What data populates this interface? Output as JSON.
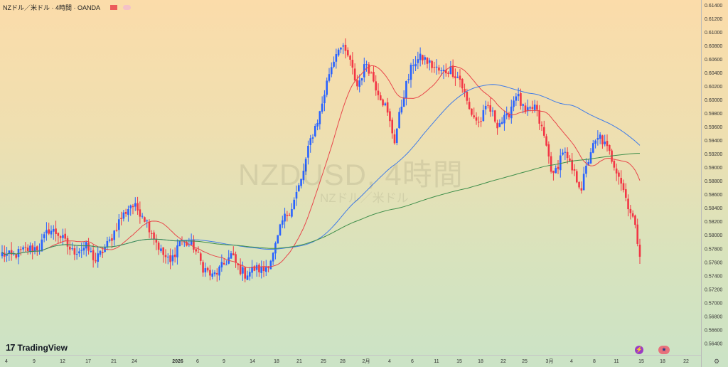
{
  "header": {
    "title": "NZドル／米ドル · 4時間 · OANDA"
  },
  "watermark": {
    "symbol": "NZDUSD, 4時間",
    "description": "NZドル／米ドル"
  },
  "branding": {
    "logo_mark": "17",
    "logo_text": "TradingView"
  },
  "icons": [
    "flash-icon",
    "us-flag-icon",
    "settings-icon"
  ],
  "colors": {
    "up": "#2962ff",
    "down": "#f23645",
    "ma_short": "#e8474b",
    "ma_mid": "#3f7be8",
    "ma_long": "#3e8e4a"
  },
  "chart_data": {
    "type": "candlestick",
    "title": "NZドル／米ドル · 4時間 · OANDA",
    "xlabel": "",
    "ylabel": "",
    "ylim": [
      0.5632,
      0.6142
    ],
    "y_ticks": [
      "0.61400",
      "0.61200",
      "0.61000",
      "0.60800",
      "0.60600",
      "0.60400",
      "0.60200",
      "0.60000",
      "0.59800",
      "0.59600",
      "0.59400",
      "0.59200",
      "0.59000",
      "0.58800",
      "0.58600",
      "0.58400",
      "0.58200",
      "0.58000",
      "0.57800",
      "0.57600",
      "0.57400",
      "0.57200",
      "0.57000",
      "0.56800",
      "0.56600",
      "0.56400"
    ],
    "x_ticks": [
      "4",
      "9",
      "12",
      "17",
      "21",
      "24",
      "2026",
      "6",
      "9",
      "14",
      "18",
      "21",
      "25",
      "28",
      "2月",
      "4",
      "6",
      "11",
      "15",
      "18",
      "22",
      "25",
      "3月",
      "4",
      "8",
      "11",
      "15",
      "18",
      "22"
    ],
    "anchors": [
      {
        "i": 0,
        "p": 0.5772
      },
      {
        "i": 4,
        "p": 0.5768
      },
      {
        "i": 10,
        "p": 0.5778
      },
      {
        "i": 16,
        "p": 0.5782
      },
      {
        "i": 20,
        "p": 0.5808
      },
      {
        "i": 24,
        "p": 0.5802
      },
      {
        "i": 30,
        "p": 0.5775
      },
      {
        "i": 36,
        "p": 0.5782
      },
      {
        "i": 40,
        "p": 0.5762
      },
      {
        "i": 46,
        "p": 0.579
      },
      {
        "i": 50,
        "p": 0.582
      },
      {
        "i": 55,
        "p": 0.5845
      },
      {
        "i": 60,
        "p": 0.5832
      },
      {
        "i": 64,
        "p": 0.5805
      },
      {
        "i": 68,
        "p": 0.5775
      },
      {
        "i": 72,
        "p": 0.5758
      },
      {
        "i": 76,
        "p": 0.5792
      },
      {
        "i": 82,
        "p": 0.5783
      },
      {
        "i": 86,
        "p": 0.5752
      },
      {
        "i": 90,
        "p": 0.5738
      },
      {
        "i": 94,
        "p": 0.5752
      },
      {
        "i": 98,
        "p": 0.577
      },
      {
        "i": 101,
        "p": 0.5752
      },
      {
        "i": 104,
        "p": 0.5742
      },
      {
        "i": 108,
        "p": 0.575
      },
      {
        "i": 112,
        "p": 0.5748
      },
      {
        "i": 116,
        "p": 0.577
      },
      {
        "i": 120,
        "p": 0.582
      },
      {
        "i": 124,
        "p": 0.5842
      },
      {
        "i": 128,
        "p": 0.588
      },
      {
        "i": 132,
        "p": 0.594
      },
      {
        "i": 136,
        "p": 0.598
      },
      {
        "i": 140,
        "p": 0.604
      },
      {
        "i": 144,
        "p": 0.608
      },
      {
        "i": 148,
        "p": 0.6065
      },
      {
        "i": 152,
        "p": 0.602
      },
      {
        "i": 156,
        "p": 0.6055
      },
      {
        "i": 160,
        "p": 0.602
      },
      {
        "i": 164,
        "p": 0.599
      },
      {
        "i": 168,
        "p": 0.594
      },
      {
        "i": 172,
        "p": 0.601
      },
      {
        "i": 176,
        "p": 0.6055
      },
      {
        "i": 180,
        "p": 0.6062
      },
      {
        "i": 184,
        "p": 0.605
      },
      {
        "i": 188,
        "p": 0.604
      },
      {
        "i": 192,
        "p": 0.6045
      },
      {
        "i": 196,
        "p": 0.603
      },
      {
        "i": 200,
        "p": 0.5985
      },
      {
        "i": 204,
        "p": 0.5965
      },
      {
        "i": 208,
        "p": 0.599
      },
      {
        "i": 212,
        "p": 0.5965
      },
      {
        "i": 216,
        "p": 0.5972
      },
      {
        "i": 220,
        "p": 0.601
      },
      {
        "i": 224,
        "p": 0.5978
      },
      {
        "i": 228,
        "p": 0.599
      },
      {
        "i": 232,
        "p": 0.5945
      },
      {
        "i": 236,
        "p": 0.5885
      },
      {
        "i": 240,
        "p": 0.5925
      },
      {
        "i": 244,
        "p": 0.5895
      },
      {
        "i": 248,
        "p": 0.587
      },
      {
        "i": 252,
        "p": 0.5925
      },
      {
        "i": 256,
        "p": 0.5945
      },
      {
        "i": 260,
        "p": 0.592
      },
      {
        "i": 264,
        "p": 0.589
      },
      {
        "i": 267,
        "p": 0.5855
      },
      {
        "i": 270,
        "p": 0.5825
      },
      {
        "i": 273,
        "p": 0.5775
      }
    ],
    "series": [
      {
        "name": "",
        "kind": "ma",
        "period": 20
      },
      {
        "name": "",
        "kind": "ma",
        "period": 75
      },
      {
        "name": "",
        "kind": "ma",
        "period": 200
      }
    ]
  }
}
